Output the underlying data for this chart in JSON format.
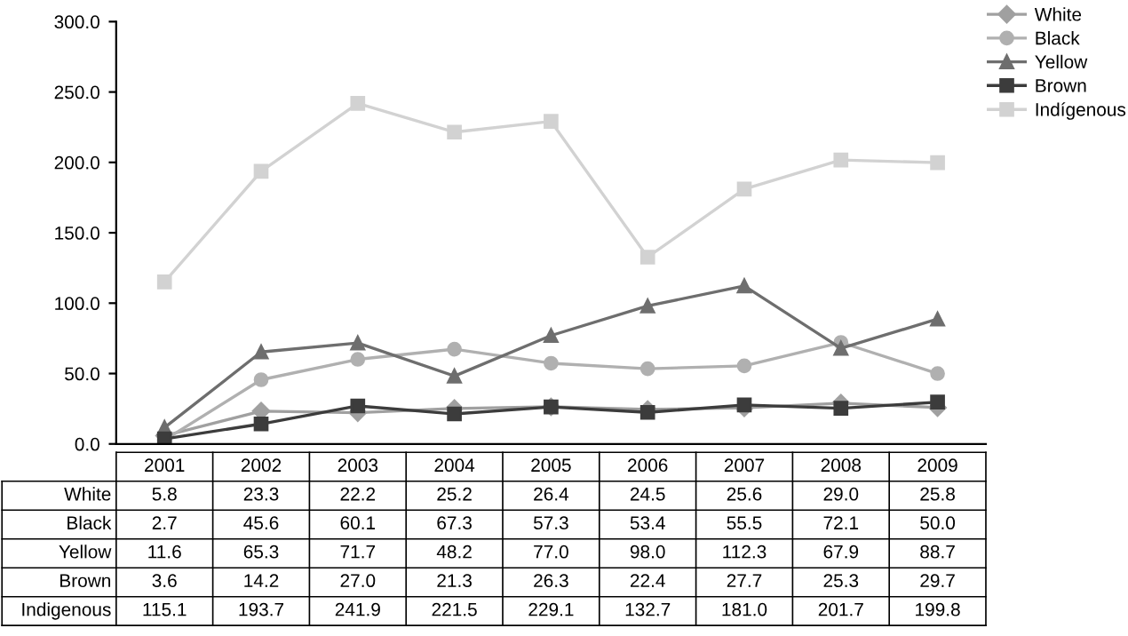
{
  "chart_data": {
    "type": "line",
    "categories": [
      "2001",
      "2002",
      "2003",
      "2004",
      "2005",
      "2006",
      "2007",
      "2008",
      "2009"
    ],
    "series": [
      {
        "name": "White",
        "color": "#a0a0a0",
        "marker": "diamond",
        "values": [
          5.8,
          23.3,
          22.2,
          25.2,
          26.4,
          24.5,
          25.6,
          29.0,
          25.8
        ],
        "value_labels": [
          "5.8",
          "23.3",
          "22.2",
          "25.2",
          "26.4",
          "24.5",
          "25.6",
          "29.0",
          "25.8"
        ]
      },
      {
        "name": "Black",
        "color": "#b0b0b0",
        "marker": "circle",
        "values": [
          2.7,
          45.6,
          60.1,
          67.3,
          57.3,
          53.4,
          55.5,
          72.1,
          50.0
        ],
        "value_labels": [
          "2.7",
          "45.6",
          "60.1",
          "67.3",
          "57.3",
          "53.4",
          "55.5",
          "72.1",
          "50.0"
        ]
      },
      {
        "name": "Yellow",
        "color": "#6e6e6e",
        "marker": "triangle",
        "values": [
          11.6,
          65.3,
          71.7,
          48.2,
          77.0,
          98.0,
          112.3,
          67.9,
          88.7
        ],
        "value_labels": [
          "11.6",
          "65.3",
          "71.7",
          "48.2",
          "77.0",
          "98.0",
          "112.3",
          "67.9",
          "88.7"
        ]
      },
      {
        "name": "Brown",
        "color": "#3c3c3c",
        "marker": "square",
        "values": [
          3.6,
          14.2,
          27.0,
          21.3,
          26.3,
          22.4,
          27.7,
          25.3,
          29.7
        ],
        "value_labels": [
          "3.6",
          "14.2",
          "27.0",
          "21.3",
          "26.3",
          "22.4",
          "27.7",
          "25.3",
          "29.7"
        ]
      },
      {
        "name": "Indígenous",
        "color": "#d2d2d2",
        "marker": "square",
        "values": [
          115.1,
          193.7,
          241.9,
          221.5,
          229.1,
          132.7,
          181.0,
          201.7,
          199.8
        ],
        "value_labels": [
          "115.1",
          "193.7",
          "241.9",
          "221.5",
          "229.1",
          "132.7",
          "181.0",
          "201.7",
          "199.8"
        ]
      }
    ],
    "annotations": [
      "White",
      "Black",
      "Yellow",
      "Brown",
      "Indigenous"
    ],
    "ylim": [
      0,
      300
    ],
    "yticks": [
      {
        "value": 0,
        "label": "0.0"
      },
      {
        "value": 50,
        "label": "50.0"
      },
      {
        "value": 100,
        "label": "100.0"
      },
      {
        "value": 150,
        "label": "150.0"
      },
      {
        "value": 200,
        "label": "200.0"
      },
      {
        "value": 250,
        "label": "250.0"
      },
      {
        "value": 300,
        "label": "300.0"
      }
    ],
    "grid": false,
    "legend": "top right",
    "line_style": "solid"
  }
}
